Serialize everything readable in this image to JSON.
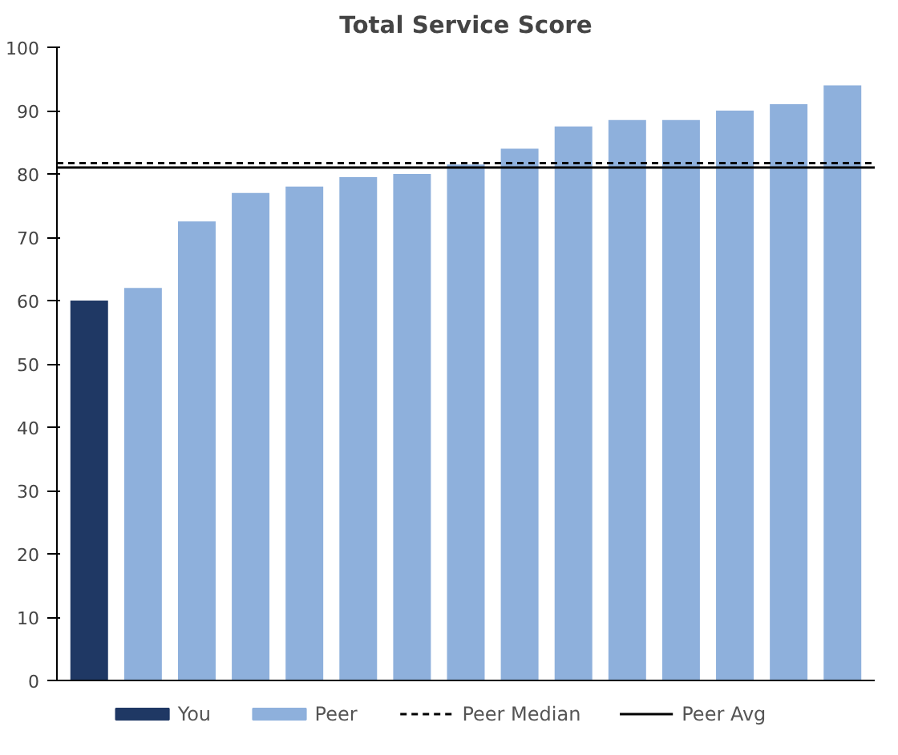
{
  "chart_data": {
    "type": "bar",
    "title": "Total Service Score",
    "categories": [
      null,
      null,
      null,
      null,
      null,
      null,
      null,
      null,
      null,
      null,
      null,
      null,
      null,
      null,
      null
    ],
    "series": [
      {
        "name": "You",
        "color": "#1f3864",
        "values": [
          60,
          null,
          null,
          null,
          null,
          null,
          null,
          null,
          null,
          null,
          null,
          null,
          null,
          null,
          null
        ]
      },
      {
        "name": "Peer",
        "color": "#8eb0dc",
        "values": [
          null,
          62,
          72.5,
          77,
          78,
          79.5,
          80,
          81.5,
          84,
          87.5,
          88.5,
          88.5,
          90,
          91,
          94
        ]
      }
    ],
    "ylim": [
      0,
      100
    ],
    "yticks": [
      0,
      10,
      20,
      30,
      40,
      50,
      60,
      70,
      80,
      90,
      100
    ],
    "ref_lines": [
      {
        "axis": "y",
        "value": 81.7,
        "label": "Peer Median",
        "color": "#000000",
        "line_style": "dashed"
      },
      {
        "axis": "y",
        "value": 81,
        "label": "Peer Avg",
        "color": "#000000",
        "line_style": "solid"
      }
    ],
    "grid": false,
    "legend": "bottom"
  }
}
